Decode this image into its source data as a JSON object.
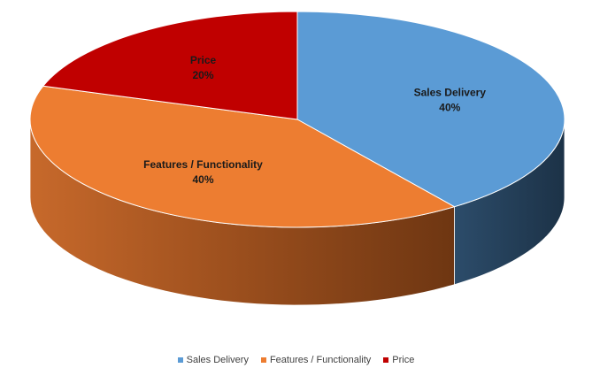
{
  "chart_data": {
    "type": "pie",
    "style": "3d",
    "categories": [
      "Sales Delivery",
      "Features / Functionality",
      "Price"
    ],
    "values": [
      40,
      40,
      20
    ],
    "value_labels": [
      "40%",
      "40%",
      "20%"
    ],
    "colors": [
      "#5B9BD5",
      "#ED7D31",
      "#C00000"
    ],
    "side_colors": [
      "#243F58",
      "#B0571F",
      "#7A0000"
    ],
    "legend_position": "bottom"
  },
  "legend": {
    "items": [
      {
        "label": "Sales Delivery",
        "color": "#5B9BD5"
      },
      {
        "label": "Features / Functionality",
        "color": "#ED7D31"
      },
      {
        "label": "Price",
        "color": "#C00000"
      }
    ]
  }
}
